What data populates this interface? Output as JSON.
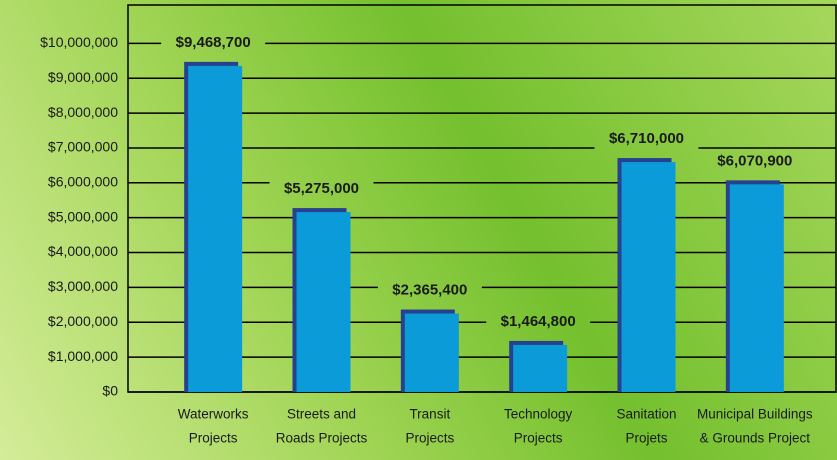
{
  "chart_data": {
    "type": "bar",
    "categories": [
      [
        "Waterworks",
        "Projects"
      ],
      [
        "Streets and",
        "Roads Projects"
      ],
      [
        "Transit",
        "Projects"
      ],
      [
        "Technology",
        "Projects"
      ],
      [
        "Sanitation",
        "Projets"
      ],
      [
        "Municipal Buildings",
        "& Grounds Project"
      ]
    ],
    "values": [
      9468700,
      5275000,
      2365400,
      1464800,
      6710000,
      6070900
    ],
    "value_labels": [
      "$9,468,700",
      "$5,275,000",
      "$2,365,400",
      "$1,464,800",
      "$6,710,000",
      "$6,070,900"
    ],
    "color": "#0a9bd8",
    "ylim": [
      0,
      11100000
    ],
    "yticks": [
      {
        "value": 0,
        "label": "$0"
      },
      {
        "value": 1000000,
        "label": "$1,000,000"
      },
      {
        "value": 2000000,
        "label": "$2,000,000"
      },
      {
        "value": 3000000,
        "label": "$3,000,000"
      },
      {
        "value": 4000000,
        "label": "$4,000,000"
      },
      {
        "value": 5000000,
        "label": "$5,000,000"
      },
      {
        "value": 6000000,
        "label": "$6,000,000"
      },
      {
        "value": 7000000,
        "label": "$7,000,000"
      },
      {
        "value": 8000000,
        "label": "$8,000,000"
      },
      {
        "value": 9000000,
        "label": "$9,000,000"
      },
      {
        "value": 10000000,
        "label": "$10,000,000"
      }
    ],
    "grid": true
  }
}
